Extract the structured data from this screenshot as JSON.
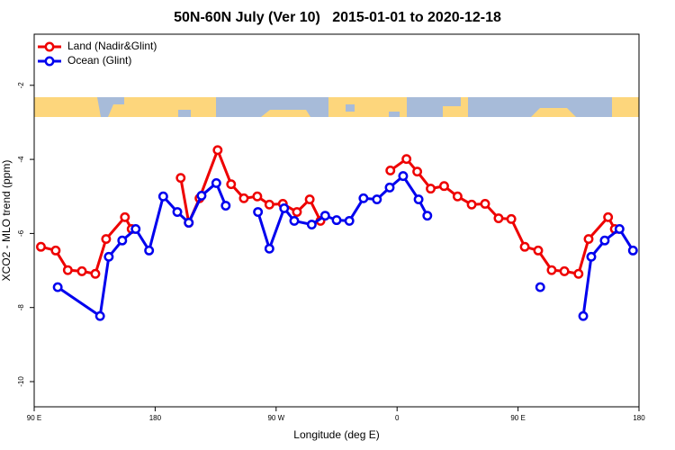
{
  "chart_data": {
    "type": "line",
    "title": "50N-60N July (Ver 10)   2015-01-01 to 2020-12-18",
    "x_label": "Longitude (deg E)",
    "y_label": "XCO2 - MLO trend (ppm)",
    "xlim": [
      90,
      540
    ],
    "xticks": [
      {
        "value": 90,
        "label": "90 E"
      },
      {
        "value": 180,
        "label": "180"
      },
      {
        "value": 270,
        "label": "90 W"
      },
      {
        "value": 360,
        "label": "0"
      },
      {
        "value": 450,
        "label": "90 E"
      },
      {
        "value": 540,
        "label": "180"
      }
    ],
    "ylim": [
      -10.68,
      -0.62
    ],
    "yticks": [
      -2,
      -4,
      -6,
      -8,
      -10
    ],
    "legend": "top-left",
    "series": [
      {
        "name": "Land (Nadir&Glint)",
        "color": "#ee0000",
        "x": [
          95,
          106,
          115,
          125.5,
          135.5,
          143.5,
          157.5,
          162.5,
          null,
          199,
          205,
          213,
          226.5,
          236.5,
          246,
          256,
          265,
          275,
          285.5,
          295,
          303,
          null,
          355,
          367,
          375,
          385,
          395,
          405,
          415.5,
          425.5,
          435.5,
          445,
          455,
          465,
          475,
          484.5,
          495,
          502.5,
          517,
          522
        ],
        "values": [
          -6.36,
          -6.46,
          -6.99,
          -7.02,
          -7.09,
          -6.15,
          -5.56,
          -5.88,
          null,
          -4.5,
          -5.71,
          -5.05,
          -3.75,
          -4.67,
          -5.05,
          -5.0,
          -5.22,
          -5.2,
          -5.42,
          -5.08,
          -5.66,
          null,
          -4.3,
          -3.99,
          -4.33,
          -4.79,
          -4.72,
          -5.0,
          -5.22,
          -5.2,
          -5.59,
          -5.61,
          -6.36,
          -6.46,
          -6.99,
          -7.02,
          -7.09,
          -6.15,
          -5.56,
          -5.88
        ]
      },
      {
        "name": "Ocean (Glint)",
        "color": "#0000ee",
        "x": [
          107.5,
          139,
          145.5,
          155.5,
          165.5,
          175.5,
          186,
          196.5,
          205,
          214.5,
          225.5,
          232.5,
          null,
          256.5,
          265,
          276,
          283.5,
          296.5,
          306.5,
          315,
          324.5,
          335,
          345,
          354.5,
          364.5,
          376,
          382.5,
          null,
          466.5,
          null,
          498.5,
          504.5,
          514.5,
          525.5,
          535.5
        ],
        "values": [
          -7.45,
          -8.23,
          -6.63,
          -6.19,
          -5.88,
          -6.46,
          -5.0,
          -5.42,
          -5.71,
          -4.98,
          -4.64,
          -5.25,
          null,
          -5.42,
          -6.41,
          -5.32,
          -5.66,
          -5.76,
          -5.52,
          -5.64,
          -5.66,
          -5.05,
          -5.08,
          -4.76,
          -4.45,
          -5.08,
          -5.52,
          null,
          -7.45,
          null,
          -8.23,
          -6.63,
          -6.19,
          -5.88,
          -6.46
        ]
      }
    ]
  }
}
